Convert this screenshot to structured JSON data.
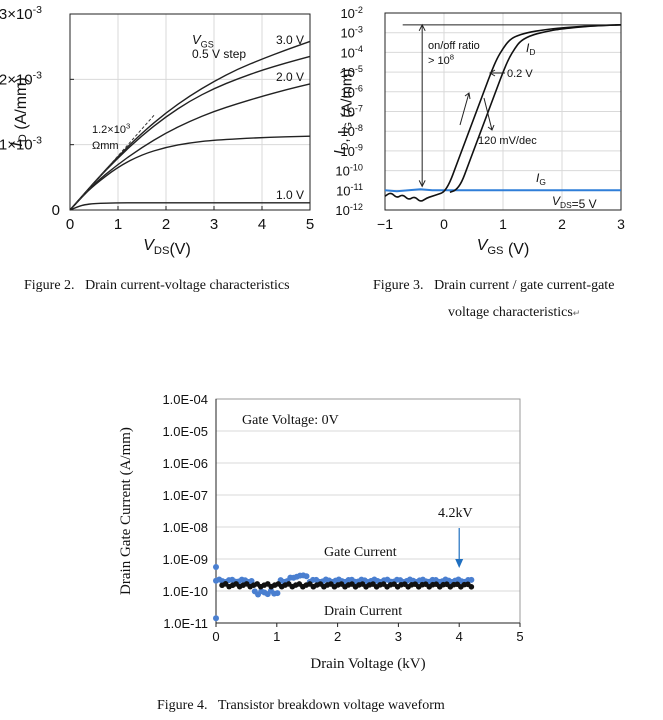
{
  "figures": [
    {
      "caption_number": "Figure 2.",
      "caption_text": "Drain current-voltage characteristics"
    },
    {
      "caption_number": "Figure 3.",
      "caption_text_line1": "Drain current / gate current-gate",
      "caption_text_line2": "voltage characteristics"
    },
    {
      "caption_number": "Figure 4.",
      "caption_text": "Transistor breakdown voltage waveform"
    }
  ],
  "chart_data": [
    {
      "id": "fig2",
      "type": "line",
      "xlabel_main": "V",
      "xlabel_sub": "DS",
      "xlabel_unit": "(V)",
      "ylabel_main": "I",
      "ylabel_sub": "D",
      "ylabel_unit": " (A/mm)",
      "xlim": [
        0,
        5
      ],
      "ylim": [
        0,
        0.003
      ],
      "x_ticks": [
        "0",
        "1",
        "2",
        "3",
        "4",
        "5"
      ],
      "y_ticks": [
        "0",
        "1×10",
        "2×10",
        "3×10"
      ],
      "y_tick_exp": "-3",
      "legend_title_main": "V",
      "legend_title_sub": "GS",
      "legend_step": "0.5 V step",
      "annotation_value": "1.2×10",
      "annotation_exp": "3",
      "annotation_unit": "Ωmm",
      "curve_labels": [
        "3.0 V",
        "2.0 V",
        "1.0 V"
      ],
      "series": [
        {
          "x": [
            0,
            0.1,
            0.2,
            0.3,
            0.5,
            1,
            2,
            3,
            4,
            5
          ],
          "values": [
            0,
            3e-05,
            6e-05,
            8e-05,
            0.0001,
            0.00011,
            0.00011,
            0.00011,
            0.00011,
            0.00011
          ]
        },
        {
          "x": [
            0,
            0.25,
            0.5,
            1,
            1.5,
            2,
            2.5,
            3,
            4,
            5
          ],
          "values": [
            0,
            0.0002,
            0.00038,
            0.00066,
            0.00085,
            0.00096,
            0.00103,
            0.00107,
            0.00111,
            0.00113
          ]
        },
        {
          "x": [
            0,
            0.5,
            1,
            1.5,
            2,
            2.5,
            3,
            3.5,
            4,
            4.5,
            5
          ],
          "values": [
            0,
            0.0004,
            0.0007,
            0.00096,
            0.00118,
            0.00136,
            0.00151,
            0.00163,
            0.00174,
            0.00184,
            0.00193
          ]
        },
        {
          "x": [
            0,
            0.5,
            1,
            1.5,
            2,
            2.5,
            3,
            3.5,
            4,
            4.5,
            5
          ],
          "values": [
            0,
            0.00042,
            0.0008,
            0.00114,
            0.00143,
            0.00167,
            0.00186,
            0.00201,
            0.00214,
            0.00225,
            0.00235
          ]
        },
        {
          "x": [
            0,
            0.5,
            1,
            1.5,
            2,
            2.5,
            3,
            3.5,
            4,
            4.5,
            5
          ],
          "values": [
            0,
            0.00042,
            0.00082,
            0.00118,
            0.00149,
            0.00175,
            0.00197,
            0.00216,
            0.00231,
            0.00245,
            0.00258
          ]
        }
      ],
      "slope_line": {
        "x": [
          0.05,
          1.75
        ],
        "values": [
          4e-05,
          0.00145
        ]
      }
    },
    {
      "id": "fig3",
      "type": "line",
      "scale": "log",
      "xlabel_main": "V",
      "xlabel_sub": "GS",
      "xlabel_unit": " (V)",
      "ylabel_part1": "I",
      "ylabel_sub1": "D",
      "ylabel_part2": ", I",
      "ylabel_sub2": "G",
      "ylabel_unit": " (A/mm)",
      "xlim": [
        -1,
        3
      ],
      "ylim_exp": [
        -12,
        -2
      ],
      "x_ticks": [
        "−1",
        "0",
        "1",
        "2",
        "3"
      ],
      "y_tick_base": "10",
      "y_tick_exps": [
        "-12",
        "-11",
        "-10",
        "-9",
        "-8",
        "-7",
        "-6",
        "-5",
        "-4",
        "-3",
        "-2"
      ],
      "annotation_onoff_line1": "on/off ratio",
      "annotation_onoff_line2": "> 10",
      "annotation_onoff_exp": "8",
      "label_id_main": "I",
      "label_id_sub": "D",
      "label_vds_step": "0.2 V",
      "label_ss": "120 mV/dec",
      "label_ig_main": "I",
      "label_ig_sub": "G",
      "label_vds_main": "V",
      "label_vds_sub": "DS",
      "label_vds_val": "=5 V",
      "id_color": "#111111",
      "ig_color": "#2f7ed8",
      "series": [
        {
          "name": "ID_forward",
          "x": [
            -1,
            -0.9,
            -0.8,
            -0.7,
            -0.6,
            -0.5,
            -0.4,
            -0.3,
            -0.2,
            -0.1,
            0,
            0.1,
            0.2,
            0.3,
            0.4,
            0.5,
            0.6,
            0.7,
            0.8,
            0.9,
            1.0,
            1.1,
            1.2,
            1.4,
            1.7,
            2.0,
            2.5,
            3.0
          ],
          "log_values": [
            -11.3,
            -11.1,
            -11.4,
            -11.2,
            -11.5,
            -11.3,
            -11.6,
            -11.4,
            -11.3,
            -11.2,
            -11.1,
            -10.6,
            -9.8,
            -9.0,
            -8.2,
            -7.4,
            -6.6,
            -5.8,
            -5.0,
            -4.3,
            -3.8,
            -3.4,
            -3.2,
            -3.0,
            -2.85,
            -2.75,
            -2.65,
            -2.6
          ]
        },
        {
          "name": "ID_reverse",
          "x": [
            0.1,
            0.2,
            0.3,
            0.4,
            0.5,
            0.6,
            0.7,
            0.8,
            0.9,
            1.0,
            1.1,
            1.2,
            1.3,
            1.5,
            1.8,
            2.0,
            2.5,
            3.0
          ],
          "log_values": [
            -11.1,
            -11.0,
            -10.6,
            -9.8,
            -9.0,
            -8.2,
            -7.4,
            -6.6,
            -5.8,
            -5.0,
            -4.3,
            -3.8,
            -3.4,
            -3.1,
            -2.9,
            -2.8,
            -2.65,
            -2.6
          ]
        },
        {
          "name": "IG",
          "x": [
            -1,
            -0.8,
            -0.6,
            -0.4,
            -0.2,
            0,
            0.5,
            1,
            1.5,
            2,
            2.5,
            3
          ],
          "log_values": [
            -11.0,
            -11.05,
            -11.0,
            -10.95,
            -11.0,
            -11.0,
            -11.0,
            -11.0,
            -11.0,
            -11.0,
            -11.0,
            -11.0
          ]
        }
      ]
    },
    {
      "id": "fig4",
      "type": "scatter",
      "scale": "log",
      "xlabel": "Drain Voltage (kV)",
      "ylabel": "Drain Gate Current (A/mm)",
      "xlim": [
        0,
        5
      ],
      "ylim_exp": [
        -11,
        -4
      ],
      "x_ticks": [
        "0",
        "1",
        "2",
        "3",
        "4",
        "5"
      ],
      "y_ticks": [
        "1.0E-11",
        "1.0E-10",
        "1.0E-09",
        "1.0E-08",
        "1.0E-07",
        "1.0E-06",
        "1.0E-05",
        "1.0E-04"
      ],
      "annotation_gate_voltage": "Gate Voltage: 0V",
      "annotation_breakdown": "4.2kV",
      "label_gate_current": "Gate Current",
      "label_drain_current": "Drain Current",
      "gate_color": "#4a7fd0",
      "drain_color": "#111111",
      "annotation_color": "#1f6fc0",
      "gate_series": {
        "x_start": 0.0,
        "x_end": 4.2,
        "count": 80,
        "base_log": -9.68,
        "dip": {
          "x_from": 0.6,
          "x_to": 1.05,
          "log": -10.05
        },
        "extra_points": [
          {
            "x": 0.0,
            "log": -9.25
          },
          {
            "x": 0.0,
            "log": -10.85
          }
        ]
      },
      "drain_series": {
        "x_start": 0.1,
        "x_end": 4.2,
        "count": 72,
        "base_log": -9.82
      }
    }
  ]
}
